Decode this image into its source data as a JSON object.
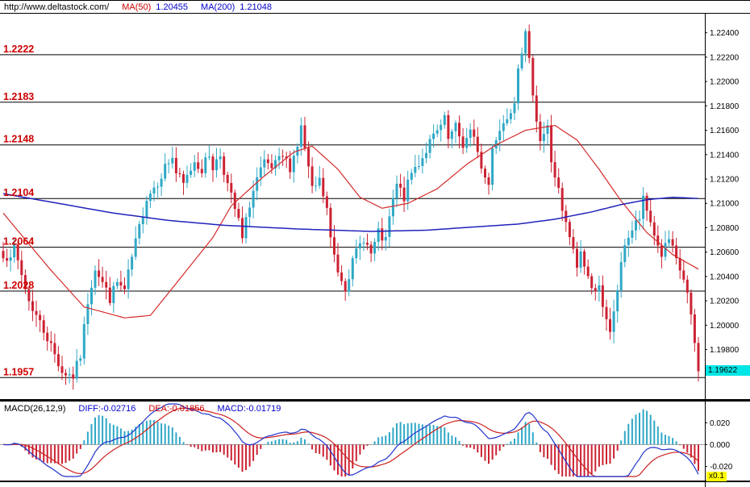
{
  "header": {
    "url": "http://www.deltastock.com/",
    "ma50_label": "MA(50)",
    "ma50_value": "1.20455",
    "ma200_label": "MA(200)",
    "ma200_value": "1.21048"
  },
  "colors": {
    "up_candle": "#2fa8c6",
    "down_candle": "#cc2233",
    "ma50_line": "#d42a2a",
    "ma200_line": "#2222bb",
    "level_line": "#000000",
    "level_label": "#cc0000",
    "price_tag_bg": "#00e5e5",
    "multiplier_bg": "#ffff00",
    "hist_up": "#2fa8c6",
    "hist_down": "#cc2233",
    "diff_line": "#2233cc",
    "dea_line": "#cc2222"
  },
  "chart_data": [
    {
      "type": "candlestick",
      "n": 190,
      "ylim": [
        1.194,
        1.2255
      ],
      "levels": [
        1.2222,
        1.2183,
        1.2148,
        1.2104,
        1.2064,
        1.2028,
        1.1957
      ],
      "level_labels": [
        "1.2222",
        "1.2183",
        "1.2148",
        "1.2104",
        "1.2064",
        "1.2028",
        "1.1957"
      ],
      "y_ticks": [
        "1.22400",
        "1.22200",
        "1.22000",
        "1.21800",
        "1.21600",
        "1.21400",
        "1.21200",
        "1.21000",
        "1.20800",
        "1.20600",
        "1.20400",
        "1.20200",
        "1.20000",
        "1.19800"
      ],
      "last_price": 1.19622,
      "last_price_label": "1.19622",
      "close_anchors": [
        [
          0,
          1.2055
        ],
        [
          3,
          1.2062
        ],
        [
          7,
          1.202
        ],
        [
          12,
          1.199
        ],
        [
          16,
          1.1962
        ],
        [
          19,
          1.1958
        ],
        [
          21,
          1.1975
        ],
        [
          23,
          1.202
        ],
        [
          25,
          1.2048
        ],
        [
          27,
          1.2035
        ],
        [
          29,
          1.2022
        ],
        [
          31,
          1.2035
        ],
        [
          33,
          1.2028
        ],
        [
          35,
          1.2055
        ],
        [
          37,
          1.208
        ],
        [
          39,
          1.2105
        ],
        [
          42,
          1.2118
        ],
        [
          44,
          1.213
        ],
        [
          46,
          1.2138
        ],
        [
          47,
          1.2125
        ],
        [
          49,
          1.2115
        ],
        [
          52,
          1.2135
        ],
        [
          54,
          1.2128
        ],
        [
          56,
          1.214
        ],
        [
          57,
          1.213
        ],
        [
          59,
          1.214
        ],
        [
          61,
          1.2115
        ],
        [
          64,
          1.2085
        ],
        [
          65,
          1.207
        ],
        [
          67,
          1.21
        ],
        [
          69,
          1.212
        ],
        [
          71,
          1.2132
        ],
        [
          73,
          1.2128
        ],
        [
          76,
          1.2138
        ],
        [
          78,
          1.213
        ],
        [
          80,
          1.2148
        ],
        [
          81,
          1.2162
        ],
        [
          83,
          1.2128
        ],
        [
          84,
          1.211
        ],
        [
          86,
          1.2118
        ],
        [
          88,
          1.2095
        ],
        [
          89,
          1.207
        ],
        [
          91,
          1.2045
        ],
        [
          93,
          1.2032
        ],
        [
          94,
          1.2042
        ],
        [
          96,
          1.206
        ],
        [
          98,
          1.2072
        ],
        [
          100,
          1.2058
        ],
        [
          102,
          1.2075
        ],
        [
          104,
          1.2068
        ],
        [
          105,
          1.2088
        ],
        [
          107,
          1.2115
        ],
        [
          109,
          1.2105
        ],
        [
          111,
          1.2125
        ],
        [
          114,
          1.2138
        ],
        [
          116,
          1.215
        ],
        [
          118,
          1.2158
        ],
        [
          120,
          1.2168
        ],
        [
          121,
          1.2152
        ],
        [
          123,
          1.2162
        ],
        [
          125,
          1.2148
        ],
        [
          127,
          1.2158
        ],
        [
          129,
          1.2145
        ],
        [
          130,
          1.2128
        ],
        [
          132,
          1.2115
        ],
        [
          133,
          1.2148
        ],
        [
          135,
          1.216
        ],
        [
          137,
          1.2172
        ],
        [
          139,
          1.2185
        ],
        [
          140,
          1.2215
        ],
        [
          142,
          1.2238
        ],
        [
          143,
          1.2215
        ],
        [
          145,
          1.217
        ],
        [
          146,
          1.2152
        ],
        [
          148,
          1.2162
        ],
        [
          149,
          1.2135
        ],
        [
          151,
          1.211
        ],
        [
          152,
          1.2092
        ],
        [
          154,
          1.2072
        ],
        [
          156,
          1.2048
        ],
        [
          157,
          1.206
        ],
        [
          159,
          1.204
        ],
        [
          160,
          1.2028
        ],
        [
          162,
          1.2035
        ],
        [
          163,
          1.2012
        ],
        [
          165,
          1.1992
        ],
        [
          166,
          1.2012
        ],
        [
          168,
          1.2048
        ],
        [
          169,
          1.2068
        ],
        [
          171,
          1.2078
        ],
        [
          173,
          1.2088
        ],
        [
          174,
          1.2102
        ],
        [
          176,
          1.2085
        ],
        [
          178,
          1.2065
        ],
        [
          179,
          1.2058
        ],
        [
          181,
          1.207
        ],
        [
          183,
          1.2052
        ],
        [
          185,
          1.2038
        ],
        [
          186,
          1.2025
        ],
        [
          188,
          1.1985
        ],
        [
          189,
          1.19622
        ]
      ],
      "ma50_anchors": [
        [
          0,
          1.2092
        ],
        [
          13,
          1.2045
        ],
        [
          22,
          1.2015
        ],
        [
          33,
          1.2006
        ],
        [
          40,
          1.2008
        ],
        [
          48,
          1.2038
        ],
        [
          57,
          1.2072
        ],
        [
          62,
          1.2098
        ],
        [
          70,
          1.212
        ],
        [
          79,
          1.2142
        ],
        [
          84,
          1.2147
        ],
        [
          91,
          1.2128
        ],
        [
          97,
          1.2105
        ],
        [
          103,
          1.2096
        ],
        [
          110,
          1.21
        ],
        [
          118,
          1.2112
        ],
        [
          126,
          1.2132
        ],
        [
          134,
          1.2148
        ],
        [
          142,
          1.216
        ],
        [
          150,
          1.2164
        ],
        [
          156,
          1.2152
        ],
        [
          162,
          1.2128
        ],
        [
          168,
          1.2102
        ],
        [
          175,
          1.2076
        ],
        [
          182,
          1.2058
        ],
        [
          189,
          1.2046
        ]
      ],
      "ma200_anchors": [
        [
          0,
          1.2108
        ],
        [
          15,
          1.21
        ],
        [
          30,
          1.2092
        ],
        [
          45,
          1.2086
        ],
        [
          60,
          1.2082
        ],
        [
          80,
          1.2079
        ],
        [
          100,
          1.2077
        ],
        [
          115,
          1.2078
        ],
        [
          130,
          1.2081
        ],
        [
          140,
          1.2083
        ],
        [
          150,
          1.2087
        ],
        [
          160,
          1.2093
        ],
        [
          168,
          1.2099
        ],
        [
          175,
          1.2103
        ],
        [
          182,
          1.2105
        ],
        [
          189,
          1.2104
        ]
      ]
    },
    {
      "type": "macd",
      "params_label": "MACD(26,12,9)",
      "diff_label": "DIFF:-0.02716",
      "dea_label": "DEA:-0.01856",
      "macd_label": "MACD:-0.01719",
      "diff_last": -0.02716,
      "y_ticks": [
        "0.020",
        "0.000",
        "-0.020"
      ],
      "y_tick_values": [
        0.02,
        0.0,
        -0.02
      ],
      "ylim": [
        -0.03,
        0.038
      ],
      "multiplier": "x0.1"
    }
  ]
}
